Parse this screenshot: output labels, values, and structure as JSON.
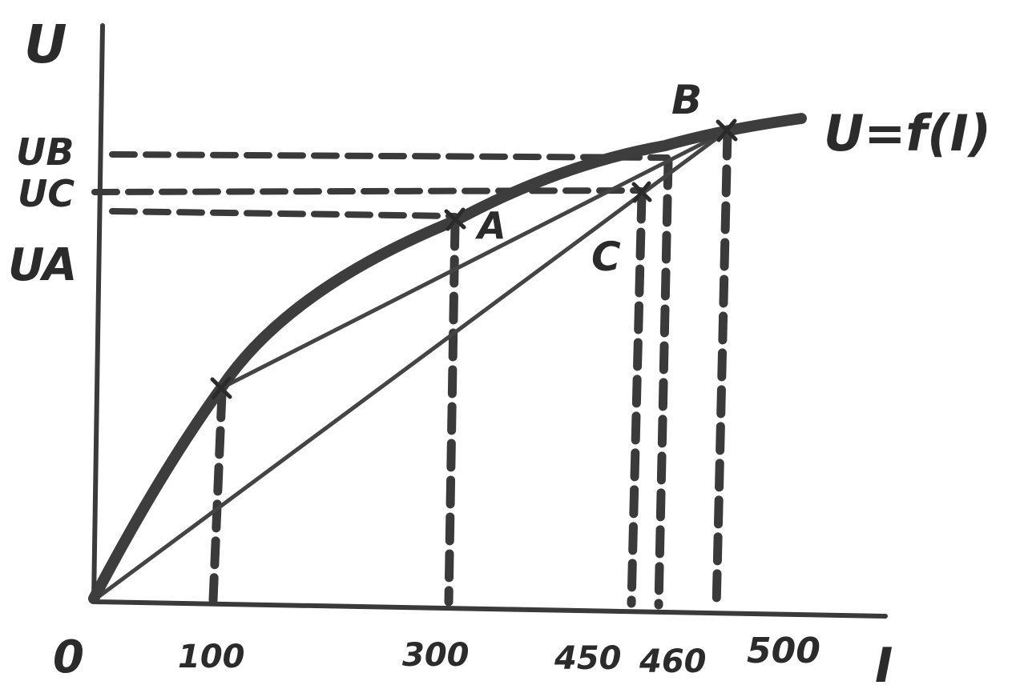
{
  "axes": {
    "y_label": "U",
    "x_label": "I",
    "origin_label": "0"
  },
  "y_ticks": {
    "ub": "UB",
    "uc": "UC",
    "ua": "UA"
  },
  "x_ticks": [
    "100",
    "300",
    "450",
    "460",
    "500"
  ],
  "curve_label": "U=f(I)",
  "points": {
    "a": "A",
    "b": "B",
    "c": "C"
  },
  "colors": {
    "ink": "#2b2b2b",
    "background": "#ffffff"
  }
}
